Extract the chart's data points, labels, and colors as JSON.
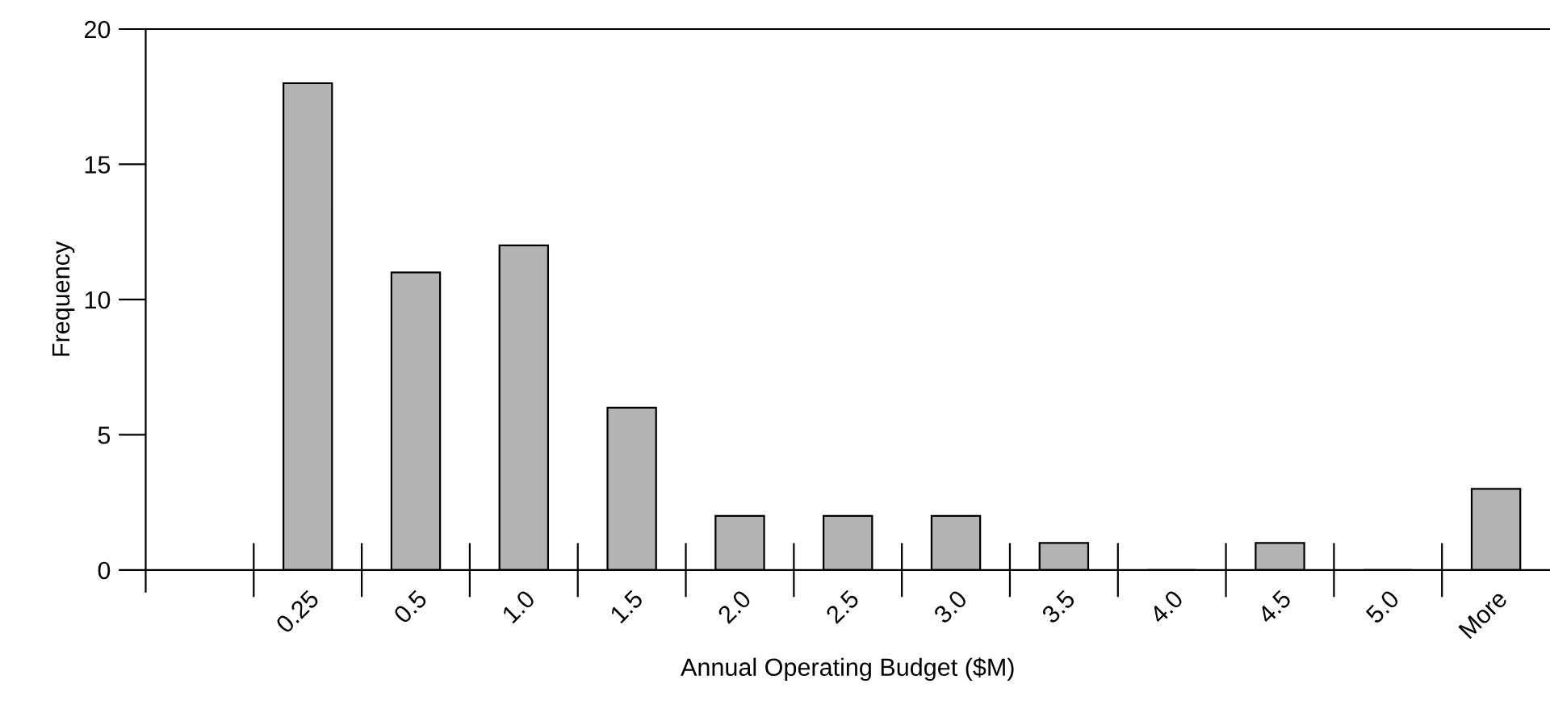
{
  "chart_data": {
    "type": "bar",
    "xlabel": "Annual Operating Budget ($M)",
    "ylabel": "Frequency",
    "categories": [
      null,
      "0.25",
      "0.5",
      "1.0",
      "1.5",
      "2.0",
      "2.5",
      "3.0",
      "3.5",
      "4.0",
      "4.5",
      "5.0",
      "More"
    ],
    "values": [
      null,
      18,
      11,
      12,
      6,
      2,
      2,
      2,
      1,
      0,
      1,
      0,
      3
    ],
    "color": "#b3b3b3",
    "ylim": [
      0,
      20
    ],
    "yticks": [
      0,
      5,
      10,
      15,
      20
    ],
    "grid": false,
    "legend": false
  }
}
